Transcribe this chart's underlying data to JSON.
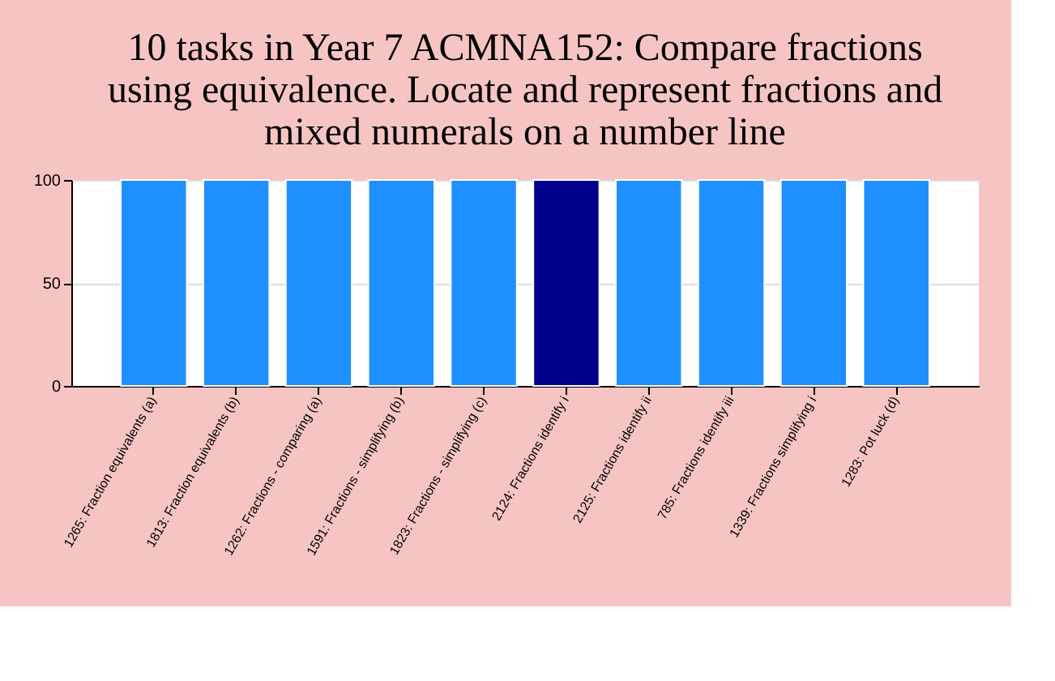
{
  "chart_data": {
    "type": "bar",
    "title": [
      "10 tasks in Year 7 ACMNA152: Compare fractions",
      "using equivalence. Locate and represent fractions and",
      "mixed numerals on a number line"
    ],
    "categories": [
      "1265: Fraction equivalents (a)",
      "1813: Fraction equivalents (b)",
      "1262: Fractions - comparing (a)",
      "1591: Fractions - simplifying (b)",
      "1823: Fractions - simplifying (c)",
      "2124: Fractions identify i",
      "2125: Fractions identify ii",
      "785: Fractions identify iii",
      "1339: Fractions simplifying i",
      "1283: Pot luck (d)"
    ],
    "values": [
      100,
      100,
      100,
      100,
      100,
      100,
      100,
      100,
      100,
      100
    ],
    "colors": [
      "#1e90ff",
      "#1e90ff",
      "#1e90ff",
      "#1e90ff",
      "#1e90ff",
      "#00008b",
      "#1e90ff",
      "#1e90ff",
      "#1e90ff",
      "#1e90ff"
    ],
    "ylim": [
      0,
      100
    ],
    "yticks": [
      0,
      50,
      100
    ],
    "grid": "y"
  }
}
